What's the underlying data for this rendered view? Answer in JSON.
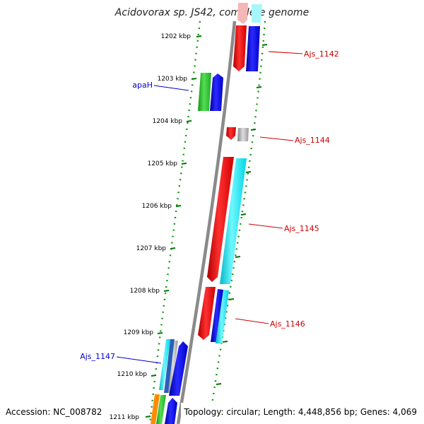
{
  "title": "Acidovorax sp. JS42, complete genome",
  "footer": {
    "accession": "Accession: NC_008782",
    "topology": "Topology: circular; Length: 4,448,856 bp; Genes: 4,069"
  },
  "ruler": {
    "unit": "kbp",
    "ticks": [
      "1202 kbp",
      "1203 kbp",
      "1204 kbp",
      "1205 kbp",
      "1206 kbp",
      "1207 kbp",
      "1208 kbp",
      "1209 kbp",
      "1210 kbp",
      "1211 kbp"
    ]
  },
  "gene_labels": [
    {
      "name": "Ajs_1142",
      "color": "#cc0000"
    },
    {
      "name": "apaH",
      "color": "#0000cc"
    },
    {
      "name": "Ajs_1144",
      "color": "#cc0000"
    },
    {
      "name": "Ajs_1145",
      "color": "#cc0000"
    },
    {
      "name": "Ajs_1146",
      "color": "#cc0000"
    },
    {
      "name": "Ajs_1147",
      "color": "#0000cc"
    }
  ],
  "colors": {
    "red": "#ff0000",
    "pink": "#f4b7b7",
    "blue": "#0000ee",
    "cyan": "#00e5f0",
    "light_cyan": "#a6f6fb",
    "green": "#22bb22",
    "gray": "#a8a8a8",
    "orange": "#ff8c00",
    "tick_green": "#007700",
    "backbone": "#888888"
  }
}
